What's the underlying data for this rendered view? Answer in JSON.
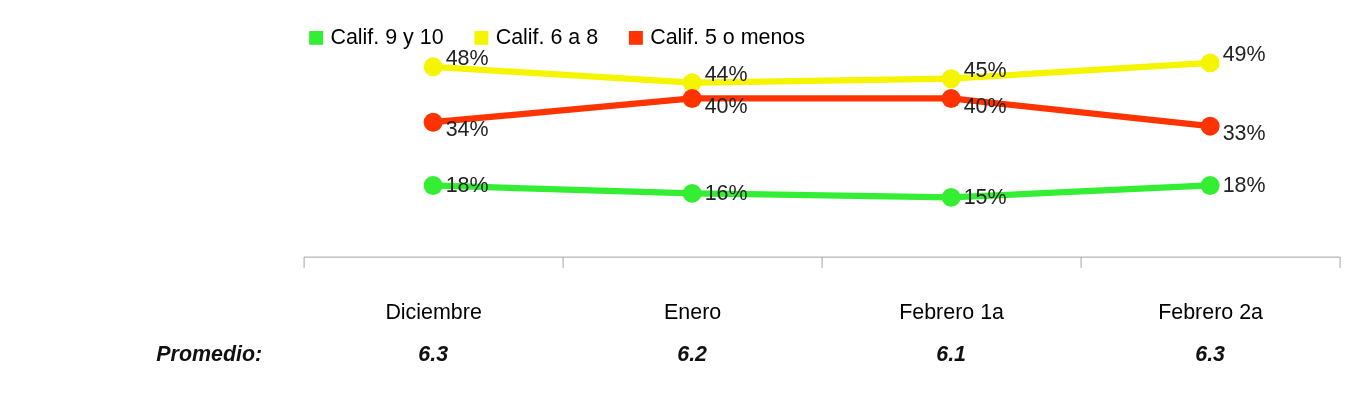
{
  "chart_data": {
    "type": "line",
    "categories": [
      "Diciembre",
      "Enero",
      "Febrero 1a",
      "Febrero 2a"
    ],
    "series": [
      {
        "name": "Calif. 9 y 10",
        "color": "#33ee33",
        "values": [
          18,
          16,
          15,
          18
        ],
        "value_labels": [
          "18%",
          "16%",
          "15%",
          "18%"
        ]
      },
      {
        "name": "Calif. 6 a 8",
        "color": "#f5f500",
        "values": [
          48,
          44,
          45,
          49
        ],
        "value_labels": [
          "48%",
          "44%",
          "45%",
          "49%"
        ]
      },
      {
        "name": "Calif. 5 o menos",
        "color": "#ff3300",
        "values": [
          34,
          40,
          40,
          33
        ],
        "value_labels": [
          "34%",
          "40%",
          "40%",
          "33%"
        ]
      }
    ],
    "tick_labels": "x",
    "marker": "circle",
    "line_style": "solid",
    "legend": "top",
    "annotations": [
      "Promedio:",
      "6.3",
      "6.2",
      "6.1",
      "6.3"
    ]
  }
}
